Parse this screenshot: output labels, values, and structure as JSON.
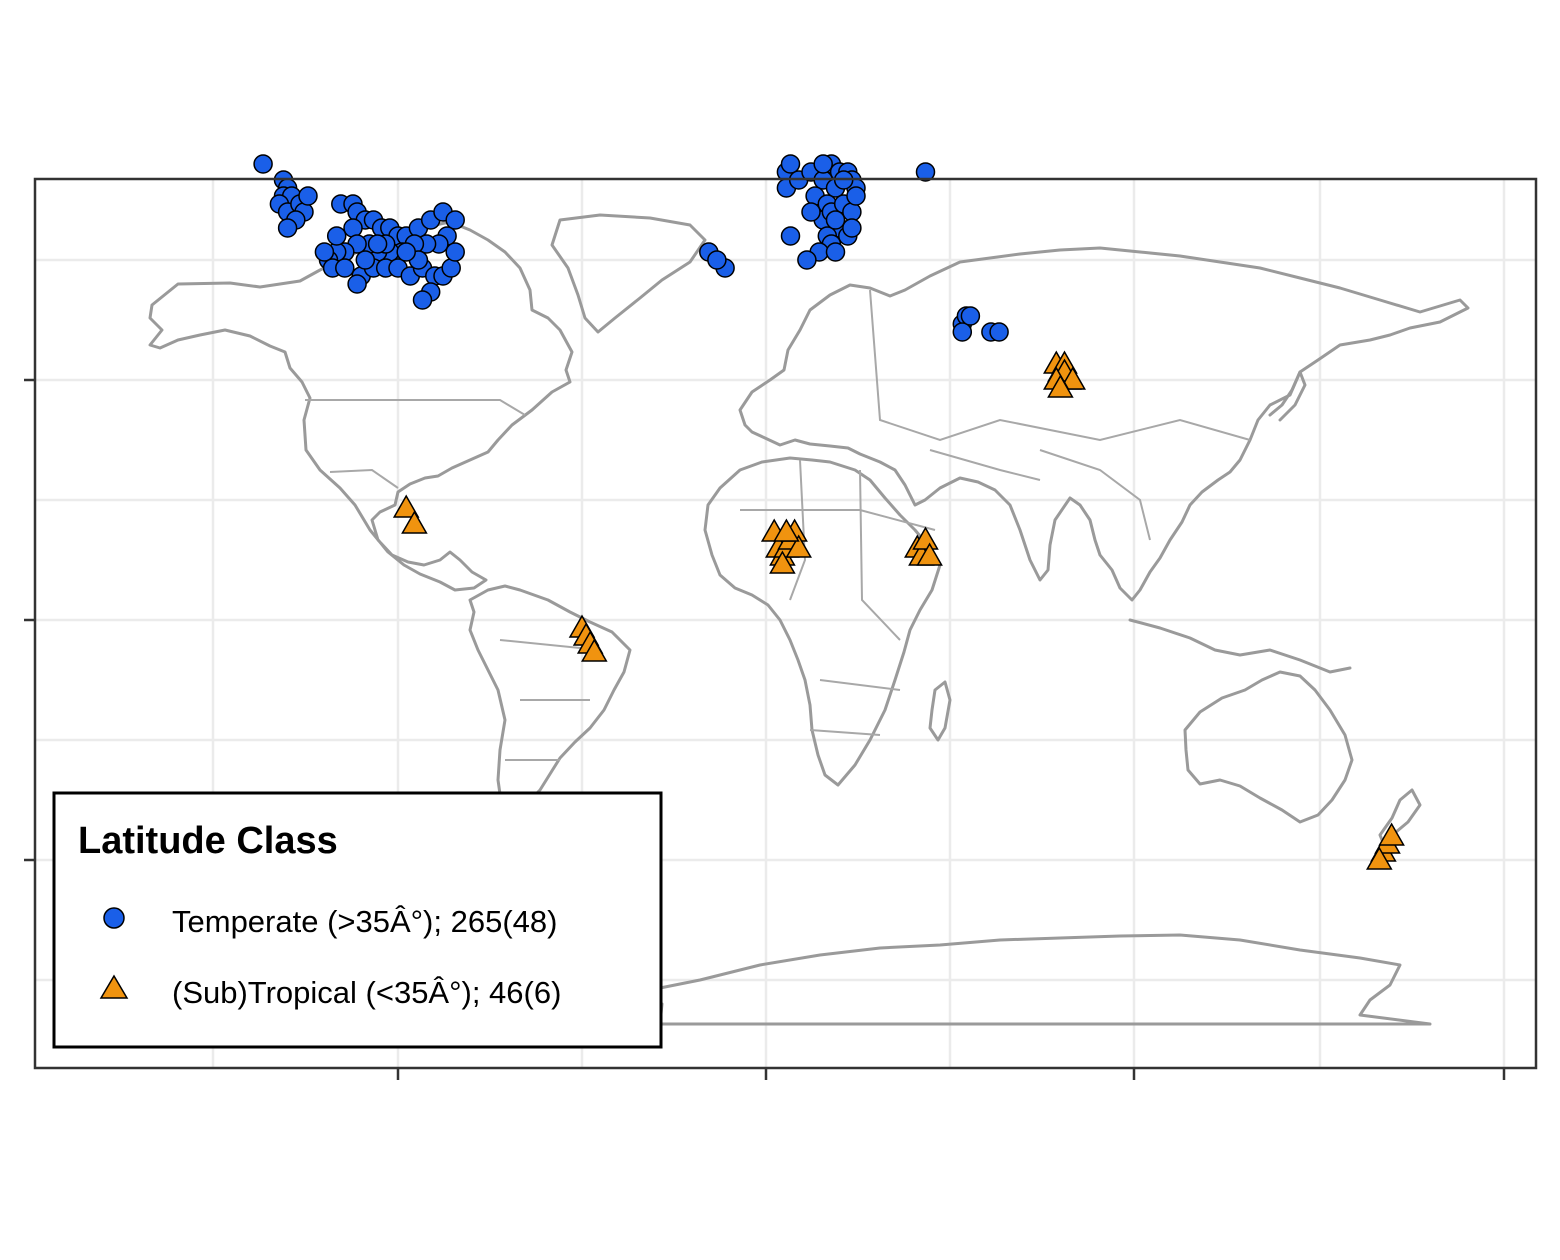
{
  "legend": {
    "title": "Latitude Class",
    "items": [
      {
        "label": "Temperate (>35Â°); 265(48)",
        "shape": "circle",
        "color": "#1a5fe8"
      },
      {
        "label": "(Sub)Tropical (<35Â°); 46(6)",
        "shape": "triangle",
        "color": "#f0930f"
      }
    ]
  },
  "style": {
    "land_outline": "#9a9a9a",
    "grid": "#ebebeb",
    "panel_border": "#333333",
    "temperate_color": "#1a5fe8",
    "tropical_color": "#f0930f"
  },
  "chart_data": {
    "type": "scatter",
    "projection": "equirectangular",
    "xlim": [
      -180,
      180
    ],
    "ylim": [
      -90,
      90
    ],
    "grid": true,
    "legend_position": "bottom-left",
    "series": [
      {
        "name": "Temperate (>35Â°); 265(48)",
        "shape": "circle",
        "points": [
          [
            -123,
            57
          ],
          [
            -118,
            55
          ],
          [
            -117,
            54
          ],
          [
            -118,
            53
          ],
          [
            -116,
            53
          ],
          [
            -119,
            52
          ],
          [
            -117,
            51
          ],
          [
            -114,
            52
          ],
          [
            -113,
            51
          ],
          [
            -115,
            50
          ],
          [
            -117,
            49
          ],
          [
            -112,
            53
          ],
          [
            -104,
            52
          ],
          [
            -101,
            52
          ],
          [
            -100,
            51
          ],
          [
            -98,
            50
          ],
          [
            -101,
            49
          ],
          [
            -96,
            50
          ],
          [
            -94,
            49
          ],
          [
            -92,
            49
          ],
          [
            -90,
            48
          ],
          [
            -88,
            48
          ],
          [
            -85,
            49
          ],
          [
            -82,
            50
          ],
          [
            -79,
            51
          ],
          [
            -76,
            50
          ],
          [
            -78,
            48
          ],
          [
            -80,
            47
          ],
          [
            -83,
            47
          ],
          [
            -86,
            47
          ],
          [
            -89,
            46
          ],
          [
            -92,
            46
          ],
          [
            -95,
            46
          ],
          [
            -97,
            47
          ],
          [
            -100,
            47
          ],
          [
            -103,
            46
          ],
          [
            -105,
            46
          ],
          [
            -107,
            45
          ],
          [
            -108,
            46
          ],
          [
            -106,
            44
          ],
          [
            -103,
            44
          ],
          [
            -99,
            43
          ],
          [
            -96,
            44
          ],
          [
            -93,
            44
          ],
          [
            -90,
            44
          ],
          [
            -87,
            43
          ],
          [
            -84,
            44
          ],
          [
            -81,
            43
          ],
          [
            -79,
            43
          ],
          [
            -77,
            44
          ],
          [
            -82,
            41
          ],
          [
            -84,
            40
          ],
          [
            -100,
            42
          ],
          [
            -93,
            47
          ],
          [
            -95,
            47
          ],
          [
            -98,
            45
          ],
          [
            -85,
            45
          ],
          [
            -76,
            46
          ],
          [
            -88,
            46
          ],
          [
            -105,
            48
          ],
          [
            -14,
            46
          ],
          [
            -10,
            44
          ],
          [
            -12,
            45
          ],
          [
            5,
            56
          ],
          [
            5,
            54
          ],
          [
            6,
            57
          ],
          [
            8,
            55
          ],
          [
            11,
            56
          ],
          [
            14,
            55
          ],
          [
            12,
            53
          ],
          [
            16,
            57
          ],
          [
            18,
            56
          ],
          [
            20,
            56
          ],
          [
            21,
            55
          ],
          [
            22,
            54
          ],
          [
            17,
            54
          ],
          [
            15,
            52
          ],
          [
            14,
            50
          ],
          [
            16,
            51
          ],
          [
            19,
            52
          ],
          [
            21,
            51
          ],
          [
            22,
            53
          ],
          [
            18,
            49
          ],
          [
            15,
            48
          ],
          [
            16,
            47
          ],
          [
            13,
            46
          ],
          [
            10,
            45
          ],
          [
            17,
            46
          ],
          [
            20,
            48
          ],
          [
            21,
            49
          ],
          [
            17,
            50
          ],
          [
            6,
            48
          ],
          [
            11,
            51
          ],
          [
            19,
            55
          ],
          [
            14,
            57
          ],
          [
            39,
            56
          ],
          [
            48,
            37
          ],
          [
            49,
            38
          ],
          [
            48,
            36
          ],
          [
            50,
            38
          ],
          [
            55,
            36
          ],
          [
            57,
            36
          ]
        ]
      },
      {
        "name": "(Sub)Tropical (<35Â°); 46(6)",
        "shape": "triangle",
        "points": [
          [
            -88,
            14
          ],
          [
            -86,
            12
          ],
          [
            -45,
            -1
          ],
          [
            -44,
            -2
          ],
          [
            -43,
            -3
          ],
          [
            -42,
            -4
          ],
          [
            2,
            11
          ],
          [
            3,
            9
          ],
          [
            4,
            8
          ],
          [
            5,
            9
          ],
          [
            6,
            10
          ],
          [
            7,
            11
          ],
          [
            4,
            7
          ],
          [
            8,
            9
          ],
          [
            5,
            11
          ],
          [
            37,
            9
          ],
          [
            38,
            8
          ],
          [
            39,
            10
          ],
          [
            40,
            8
          ],
          [
            71,
            32
          ],
          [
            72,
            31
          ],
          [
            73,
            32
          ],
          [
            74,
            30
          ],
          [
            73,
            31
          ],
          [
            75,
            30
          ],
          [
            71,
            30
          ],
          [
            72,
            29
          ],
          [
            151,
            -29
          ],
          [
            152,
            -28
          ],
          [
            153,
            -27
          ],
          [
            150,
            -30
          ]
        ]
      }
    ]
  }
}
